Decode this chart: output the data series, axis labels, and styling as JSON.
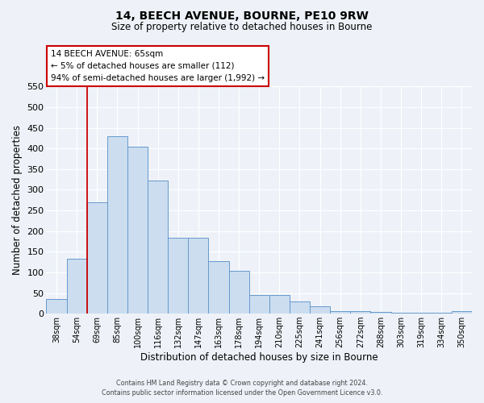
{
  "title": "14, BEECH AVENUE, BOURNE, PE10 9RW",
  "subtitle": "Size of property relative to detached houses in Bourne",
  "xlabel": "Distribution of detached houses by size in Bourne",
  "ylabel": "Number of detached properties",
  "bar_labels": [
    "38sqm",
    "54sqm",
    "69sqm",
    "85sqm",
    "100sqm",
    "116sqm",
    "132sqm",
    "147sqm",
    "163sqm",
    "178sqm",
    "194sqm",
    "210sqm",
    "225sqm",
    "241sqm",
    "256sqm",
    "272sqm",
    "288sqm",
    "303sqm",
    "319sqm",
    "334sqm",
    "350sqm"
  ],
  "bar_values": [
    35,
    133,
    270,
    430,
    405,
    322,
    183,
    183,
    127,
    103,
    45,
    45,
    30,
    18,
    7,
    7,
    4,
    3,
    3,
    3,
    7
  ],
  "bar_color": "#ccddf0",
  "bar_edgecolor": "#6699cc",
  "ylim": [
    0,
    550
  ],
  "yticks": [
    0,
    50,
    100,
    150,
    200,
    250,
    300,
    350,
    400,
    450,
    500,
    550
  ],
  "vline_bar_index": 2,
  "vline_color": "#cc0000",
  "annotation_title": "14 BEECH AVENUE: 65sqm",
  "annotation_line1": "← 5% of detached houses are smaller (112)",
  "annotation_line2": "94% of semi-detached houses are larger (1,992) →",
  "annotation_box_edgecolor": "#cc0000",
  "footer_line1": "Contains HM Land Registry data © Crown copyright and database right 2024.",
  "footer_line2": "Contains public sector information licensed under the Open Government Licence v3.0.",
  "background_color": "#eef2f8",
  "plot_bg_color": "#eef2f8",
  "grid_color": "#ffffff"
}
